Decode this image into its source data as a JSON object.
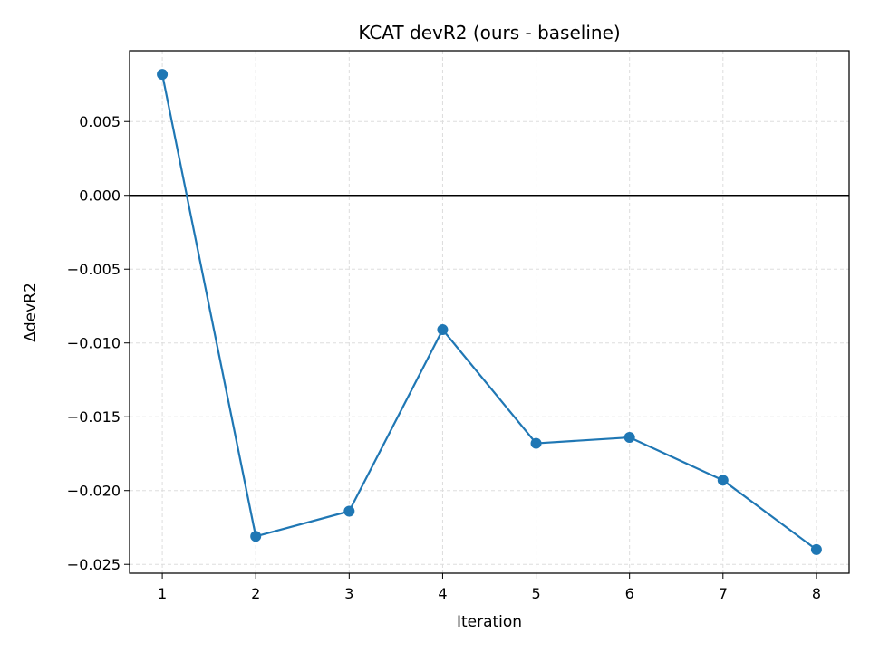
{
  "chart_data": {
    "type": "line",
    "title": "KCAT devR2 (ours - baseline)",
    "xlabel": "Iteration",
    "ylabel": "ΔdevR2",
    "x": [
      1,
      2,
      3,
      4,
      5,
      6,
      7,
      8
    ],
    "series": [
      {
        "values": [
          0.0082,
          -0.0231,
          -0.0214,
          -0.0091,
          -0.0168,
          -0.0164,
          -0.0193,
          -0.024
        ]
      }
    ],
    "xlim": [
      0.65,
      8.35
    ],
    "ylim": [
      -0.0256,
      0.0098
    ],
    "x_ticks": [
      1,
      2,
      3,
      4,
      5,
      6,
      7,
      8
    ],
    "x_tick_labels": [
      "1",
      "2",
      "3",
      "4",
      "5",
      "6",
      "7",
      "8"
    ],
    "y_ticks": [
      0.005,
      0.0,
      -0.005,
      -0.01,
      -0.015,
      -0.02,
      -0.025
    ],
    "y_tick_labels": [
      "0.005",
      "0.000",
      "−0.005",
      "−0.010",
      "−0.015",
      "−0.020",
      "−0.025"
    ],
    "reference_line_y": 0,
    "grid": true,
    "grid_style": "dashed",
    "colors": {
      "series": "#1f77b4",
      "grid": "#dddddd",
      "reference": "#000000"
    }
  }
}
